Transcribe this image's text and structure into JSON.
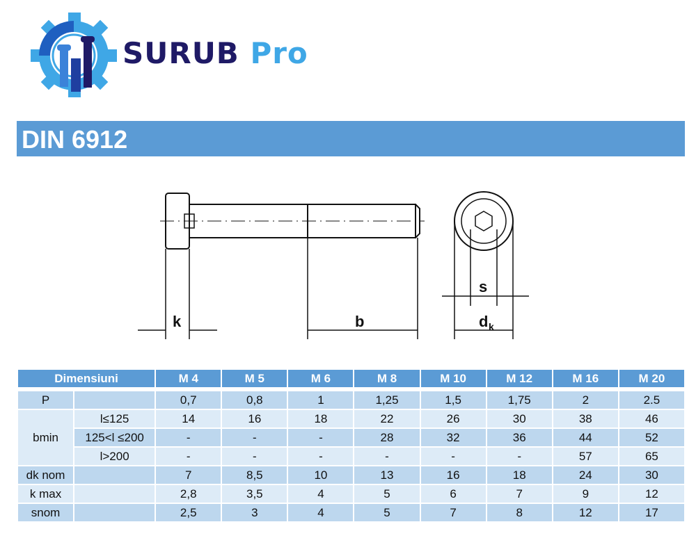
{
  "brand": {
    "name_part1": "SURUB",
    "name_part2": "Pro",
    "colors": {
      "dark": "#1f1a66",
      "light": "#3fa7e6"
    }
  },
  "title": "DIN 6912",
  "drawing": {
    "labels": {
      "k": "k",
      "b": "b",
      "s": "s",
      "dk": "d",
      "dk_sub": "k"
    }
  },
  "table": {
    "header": {
      "dim": "Dimensiuni",
      "sizes": [
        "M 4",
        "M 5",
        "M 6",
        "M 8",
        "M 10",
        "M 12",
        "M 16",
        "M 20"
      ]
    },
    "rows": [
      {
        "label": "P",
        "sub": "",
        "values": [
          "0,7",
          "0,8",
          "1",
          "1,25",
          "1,5",
          "1,75",
          "2",
          "2.5"
        ]
      },
      {
        "label": "bmin",
        "sub": "l≤125",
        "values": [
          "14",
          "16",
          "18",
          "22",
          "26",
          "30",
          "38",
          "46"
        ]
      },
      {
        "label": "",
        "sub": "125<l ≤200",
        "values": [
          "-",
          "-",
          "-",
          "28",
          "32",
          "36",
          "44",
          "52"
        ]
      },
      {
        "label": "",
        "sub": "l>200",
        "values": [
          "-",
          "-",
          "-",
          "-",
          "-",
          "-",
          "57",
          "65"
        ]
      },
      {
        "label": "dk nom",
        "sub": "",
        "values": [
          "7",
          "8,5",
          "10",
          "13",
          "16",
          "18",
          "24",
          "30"
        ]
      },
      {
        "label": "k max",
        "sub": "",
        "values": [
          "2,8",
          "3,5",
          "4",
          "5",
          "6",
          "7",
          "9",
          "12"
        ]
      },
      {
        "label": "snom",
        "sub": "",
        "values": [
          "2,5",
          "3",
          "4",
          "5",
          "7",
          "8",
          "12",
          "17"
        ]
      }
    ]
  },
  "colors": {
    "header": "#5b9bd5",
    "row_dark": "#bdd7ee",
    "row_light": "#ddebf7"
  }
}
